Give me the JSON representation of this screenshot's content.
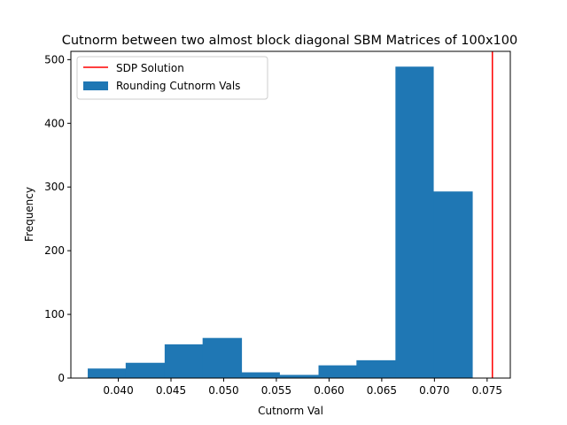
{
  "chart_data": {
    "type": "bar",
    "title": "Cutnorm between two almost block diagonal SBM Matrices of 100x100",
    "xlabel": "Cutnorm Val",
    "ylabel": "Frequency",
    "xlim": [
      0.0355,
      0.0772
    ],
    "ylim": [
      0,
      513
    ],
    "x_ticks": [
      0.04,
      0.045,
      0.05,
      0.055,
      0.06,
      0.065,
      0.07,
      0.075
    ],
    "x_tick_labels": [
      "0.040",
      "0.045",
      "0.050",
      "0.055",
      "0.060",
      "0.065",
      "0.070",
      "0.075"
    ],
    "y_ticks": [
      0,
      100,
      200,
      300,
      400,
      500
    ],
    "y_tick_labels": [
      "0",
      "100",
      "200",
      "300",
      "400",
      "500"
    ],
    "bin_edges": [
      0.0371,
      0.0407,
      0.0444,
      0.048,
      0.0517,
      0.0553,
      0.059,
      0.0626,
      0.0663,
      0.0699,
      0.0736
    ],
    "counts": [
      15,
      24,
      53,
      63,
      9,
      5,
      20,
      28,
      489,
      293
    ],
    "vline": {
      "x": 0.0755,
      "name": "SDP Solution",
      "color": "#ff0000"
    },
    "series": [
      {
        "name": "Rounding Cutnorm Vals",
        "color": "#1f77b4"
      }
    ],
    "legend": "top-left",
    "grid": false
  }
}
